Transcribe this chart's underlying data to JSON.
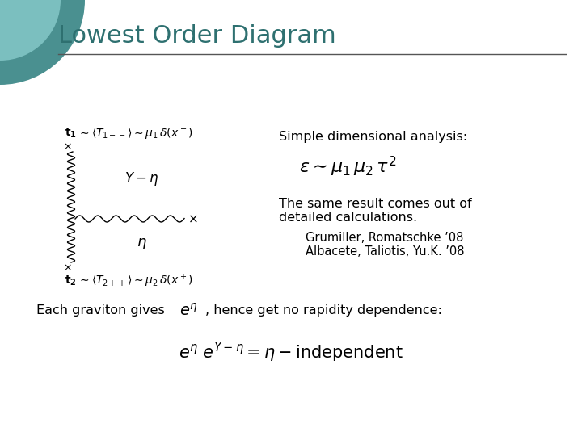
{
  "title": "Lowest Order Diagram",
  "title_color": "#2e7070",
  "title_fontsize": 22,
  "bg_color": "#ffffff",
  "circle_outer_color": "#4a9090",
  "circle_inner_color": "#7bbfbf",
  "text_color": "#000000",
  "simple_dim_label": "Simple dimensional analysis:",
  "epsilon_formula": "$\\varepsilon \\sim \\mu_1\\, \\mu_2\\, \\tau^2$",
  "same_result_line1": "The same result comes out of",
  "same_result_line2": "detailed calculations.",
  "citation1": "Grumiller, Romatschke ’08",
  "citation2": "Albacete, Taliotis, Yu.K. ’08",
  "t1_formula": "$\\mathbf{t_1}$",
  "t1_rhs": "$\\sim\\langle T_{1--}\\rangle\\sim\\mu_1\\,\\delta(x^-)$",
  "t2_formula": "$\\mathbf{t_2}$",
  "t2_rhs": "$\\sim\\langle T_{2++}\\rangle\\sim\\mu_2\\,\\delta(x^+)$",
  "y_minus_eta": "$Y - \\eta$",
  "eta_label": "$\\eta$",
  "each_graviton_text": "Each graviton gives",
  "e_eta": "$e^\\eta$",
  "hence_text": ", hence get no rapidity dependence:",
  "bottom_formula": "$e^\\eta\\; e^{Y-\\eta} = \\eta - \\mathrm{independent}$",
  "body_fontsize": 11.5,
  "formula_fontsize": 14,
  "small_fontsize": 10
}
